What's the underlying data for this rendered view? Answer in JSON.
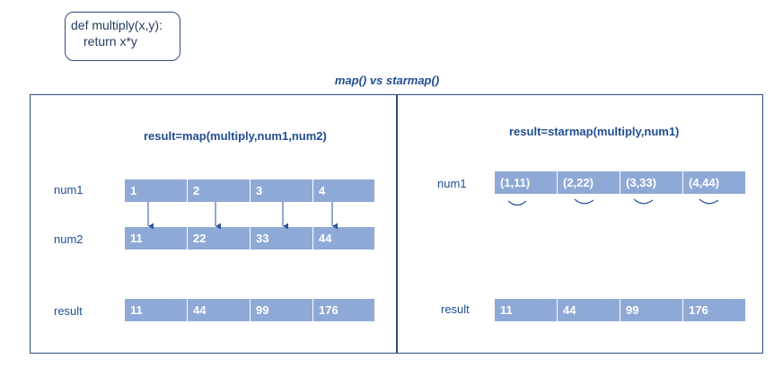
{
  "code": {
    "line1": "def multiply(x,y):",
    "line2": "return x*y"
  },
  "title": "map() vs starmap()",
  "left": {
    "formula": "result=map(multiply,num1,num2)",
    "num1_label": "num1",
    "num2_label": "num2",
    "result_label": "result",
    "num1": [
      "1",
      "2",
      "3",
      "4"
    ],
    "num2": [
      "11",
      "22",
      "33",
      "44"
    ],
    "result": [
      "11",
      "44",
      "99",
      "176"
    ]
  },
  "right": {
    "formula": "result=starmap(multiply,num1)",
    "num1_label": "num1",
    "result_label": "result",
    "num1": [
      "(1,11)",
      "(2,22)",
      "(3,33)",
      "(4,44)"
    ],
    "result": [
      "11",
      "44",
      "99",
      "176"
    ]
  },
  "colors": {
    "cell": "#8fa9d6",
    "border": "#2e4d7d",
    "text": "#1f4e91",
    "arrow": "#2e5597"
  }
}
